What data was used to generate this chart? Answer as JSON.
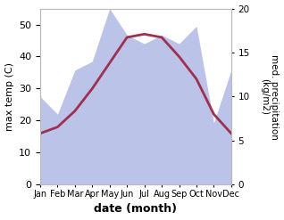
{
  "months": [
    "Jan",
    "Feb",
    "Mar",
    "Apr",
    "May",
    "Jun",
    "Jul",
    "Aug",
    "Sep",
    "Oct",
    "Nov",
    "Dec"
  ],
  "month_indices": [
    0,
    1,
    2,
    3,
    4,
    5,
    6,
    7,
    8,
    9,
    10,
    11
  ],
  "max_temp": [
    16,
    18,
    23,
    30,
    38,
    46,
    47,
    46,
    40,
    33,
    22,
    16
  ],
  "precipitation": [
    10,
    8,
    13,
    14,
    20,
    17,
    16,
    17,
    16,
    18,
    7,
    13
  ],
  "temp_color": "#9e3050",
  "precip_fill_color": "#bcc3e8",
  "left_ylim": [
    0,
    55
  ],
  "right_ylim": [
    0,
    20
  ],
  "left_yticks": [
    0,
    10,
    20,
    30,
    40,
    50
  ],
  "right_yticks": [
    0,
    5,
    10,
    15,
    20
  ],
  "ylabel_left": "max temp (C)",
  "ylabel_right": "med. precipitation\n(kg/m2)",
  "xlabel": "date (month)",
  "bg_color": "#ffffff"
}
